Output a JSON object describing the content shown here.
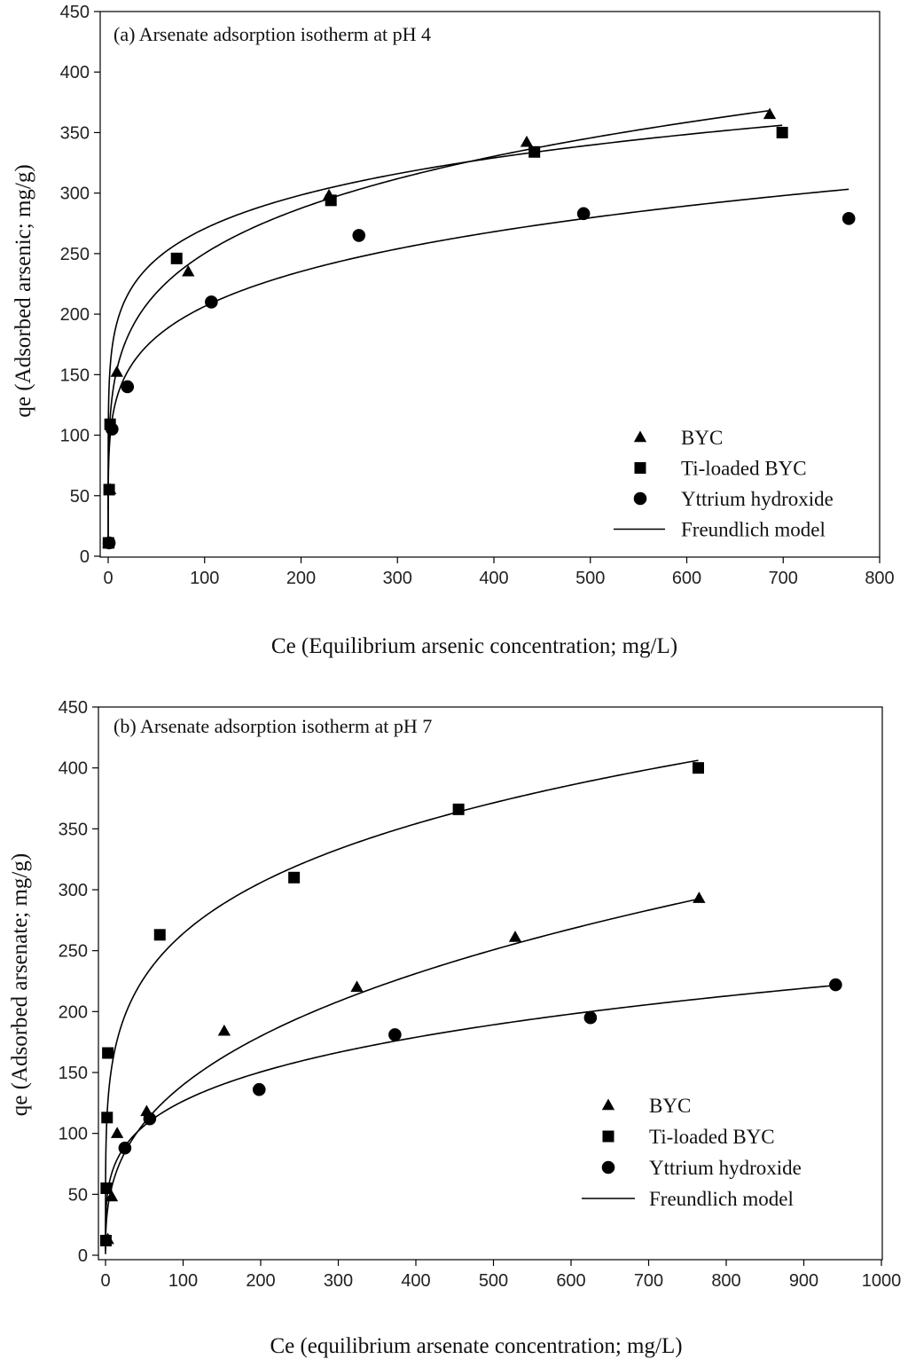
{
  "chart_data": [
    {
      "type": "scatter",
      "title": "(a) Arsenate adsorption isotherm at pH 4",
      "xlabel": "Ce (Equilibrium arsenic concentration; mg/L)",
      "ylabel": "qe (Adsorbed arsenic; mg/g)",
      "xlim": [
        0,
        800
      ],
      "ylim": [
        0,
        450
      ],
      "xticks": [
        0,
        100,
        200,
        300,
        400,
        500,
        600,
        700,
        800
      ],
      "yticks": [
        0,
        50,
        100,
        150,
        200,
        250,
        300,
        350,
        400,
        450
      ],
      "grid": false,
      "legend_position": "bottom-right",
      "legend": [
        {
          "label": "BYC",
          "marker": "triangle"
        },
        {
          "label": "Ti-loaded BYC",
          "marker": "square"
        },
        {
          "label": "Yttrium hydroxide",
          "marker": "circle"
        },
        {
          "label": "Freundlich model",
          "marker": "line"
        }
      ],
      "series": [
        {
          "name": "BYC",
          "marker": "triangle",
          "x": [
            0.5,
            2,
            9,
            83,
            229,
            434,
            686
          ],
          "y": [
            11,
            55,
            152,
            235,
            298,
            342,
            365
          ],
          "fit": {
            "K": 99.2,
            "n": 0.2008,
            "xmax": 686
          }
        },
        {
          "name": "Ti-loaded BYC",
          "marker": "square",
          "x": [
            0.3,
            1,
            2,
            71,
            231,
            442,
            699
          ],
          "y": [
            11,
            55,
            109,
            246,
            294,
            334,
            350
          ],
          "fit": {
            "K": 141.3,
            "n": 0.1411,
            "xmax": 699
          }
        },
        {
          "name": "Yttrium hydroxide",
          "marker": "circle",
          "x": [
            1,
            4,
            20,
            107,
            260,
            493,
            768
          ],
          "y": [
            11,
            105,
            140,
            210,
            265,
            283,
            279
          ],
          "fit": {
            "K": 86.6,
            "n": 0.1886,
            "xmax": 768
          }
        }
      ]
    },
    {
      "type": "scatter",
      "title": "(b) Arsenate adsorption isotherm at pH 7",
      "xlabel": "Ce (equilibrium arsenate concentration; mg/L)",
      "ylabel": "qe (Adsorbed arsenate; mg/g)",
      "xlim": [
        0,
        1000
      ],
      "ylim": [
        0,
        450
      ],
      "xticks": [
        0,
        100,
        200,
        300,
        400,
        500,
        600,
        700,
        800,
        900,
        1000
      ],
      "yticks": [
        0,
        50,
        100,
        150,
        200,
        250,
        300,
        350,
        400,
        450
      ],
      "grid": false,
      "legend_position": "bottom-right",
      "legend": [
        {
          "label": "BYC",
          "marker": "triangle"
        },
        {
          "label": "Ti-loaded BYC",
          "marker": "square"
        },
        {
          "label": "Yttrium hydroxide",
          "marker": "circle"
        },
        {
          "label": "Freundlich model",
          "marker": "line"
        }
      ],
      "series": [
        {
          "name": "BYC",
          "marker": "triangle",
          "x": [
            3,
            8,
            15,
            53,
            153,
            324,
            528,
            765
          ],
          "y": [
            13,
            48,
            100,
            118,
            184,
            220,
            261,
            293
          ],
          "fit": {
            "K": 26.3,
            "n": 0.3628,
            "xmax": 765
          }
        },
        {
          "name": "Ti-loaded BYC",
          "marker": "square",
          "x": [
            0.5,
            1,
            2,
            3,
            70,
            243,
            455,
            764
          ],
          "y": [
            12,
            55,
            113,
            166,
            263,
            310,
            366,
            400
          ],
          "fit": {
            "K": 99.5,
            "n": 0.2119,
            "xmax": 764
          }
        },
        {
          "name": "Yttrium hydroxide",
          "marker": "circle",
          "x": [
            25,
            57,
            198,
            373,
            625,
            941
          ],
          "y": [
            88,
            112,
            136,
            181,
            195,
            222
          ],
          "fit": {
            "K": 40.0,
            "n": 0.25,
            "xmax": 941
          }
        }
      ]
    }
  ]
}
